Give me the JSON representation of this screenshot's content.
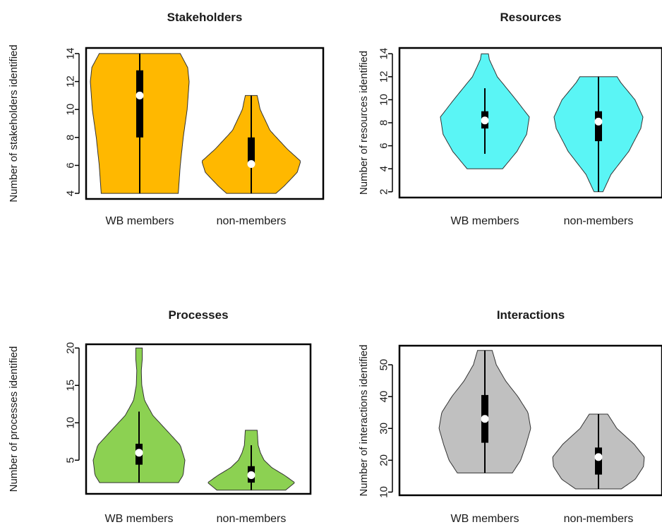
{
  "chart_data": [
    {
      "type": "violin",
      "title": "Stakeholders",
      "ylabel": "Number of stakeholders identified",
      "categories": [
        "WB members",
        "non-members"
      ],
      "yticks": [
        4,
        6,
        8,
        10,
        12,
        14
      ],
      "ylim": [
        3.6,
        14.4
      ],
      "fill": "#FFB800",
      "series": [
        {
          "min": 4,
          "q1": 8,
          "median": 11,
          "q3": 12.8,
          "max": 14,
          "density": [
            [
              4,
              0.78
            ],
            [
              6,
              0.82
            ],
            [
              8,
              0.88
            ],
            [
              10,
              0.96
            ],
            [
              12,
              1.0
            ],
            [
              13,
              0.97
            ],
            [
              14,
              0.82
            ]
          ]
        },
        {
          "min": 4,
          "q1": 6.1,
          "median": 6.1,
          "q3": 8,
          "max": 11,
          "density": [
            [
              4,
              0.5
            ],
            [
              4.5,
              0.66
            ],
            [
              5.5,
              0.93
            ],
            [
              6.3,
              1.0
            ],
            [
              7.2,
              0.72
            ],
            [
              8.5,
              0.38
            ],
            [
              10,
              0.18
            ],
            [
              11,
              0.12
            ]
          ]
        }
      ]
    },
    {
      "type": "violin",
      "title": "Resources",
      "ylabel": "Number of resources identified",
      "categories": [
        "WB members",
        "non-members"
      ],
      "yticks": [
        2,
        4,
        6,
        8,
        10,
        12,
        14
      ],
      "ylim": [
        1.5,
        14.5
      ],
      "fill": "#5AF5F5",
      "series": [
        {
          "min": 5.3,
          "q1": 7.5,
          "median": 8.2,
          "q3": 9,
          "max": 11,
          "density": [
            [
              4,
              0.4
            ],
            [
              5.5,
              0.72
            ],
            [
              7,
              0.94
            ],
            [
              8.5,
              1.0
            ],
            [
              10,
              0.7
            ],
            [
              12,
              0.28
            ],
            [
              13.5,
              0.1
            ],
            [
              14,
              0.08
            ]
          ]
        },
        {
          "min": 2,
          "q1": 6.4,
          "median": 8.1,
          "q3": 9,
          "max": 12,
          "density": [
            [
              2,
              0.1
            ],
            [
              3.5,
              0.28
            ],
            [
              5.5,
              0.68
            ],
            [
              7.5,
              0.95
            ],
            [
              8.5,
              1.0
            ],
            [
              10,
              0.82
            ],
            [
              11.5,
              0.5
            ],
            [
              12,
              0.42
            ]
          ]
        }
      ]
    },
    {
      "type": "violin",
      "title": "Processes",
      "ylabel": "Number of processes identified",
      "categories": [
        "WB members",
        "non-members"
      ],
      "yticks": [
        5,
        10,
        15,
        20
      ],
      "ylim": [
        0.5,
        20.5
      ],
      "fill": "#8CD152",
      "series": [
        {
          "min": 2,
          "q1": 4.4,
          "median": 6,
          "q3": 7.2,
          "max": 11.5,
          "density": [
            [
              2,
              0.86
            ],
            [
              3,
              0.96
            ],
            [
              5,
              1.0
            ],
            [
              7,
              0.9
            ],
            [
              9,
              0.6
            ],
            [
              11,
              0.3
            ],
            [
              13,
              0.12
            ],
            [
              15,
              0.06
            ],
            [
              17,
              0.05
            ],
            [
              18.5,
              0.07
            ],
            [
              20,
              0.07
            ]
          ]
        },
        {
          "min": 1,
          "q1": 2,
          "median": 3,
          "q3": 4.2,
          "max": 7,
          "density": [
            [
              1,
              0.75
            ],
            [
              2,
              0.95
            ],
            [
              3,
              0.72
            ],
            [
              4,
              0.45
            ],
            [
              5,
              0.28
            ],
            [
              6,
              0.2
            ],
            [
              7,
              0.15
            ],
            [
              8,
              0.14
            ],
            [
              9,
              0.13
            ]
          ]
        }
      ]
    },
    {
      "type": "violin",
      "title": "Interactions",
      "ylabel": "Number of interactions identified",
      "categories": [
        "WB members",
        "non-members"
      ],
      "yticks": [
        10,
        20,
        30,
        40,
        50
      ],
      "ylim": [
        9,
        56
      ],
      "fill": "#C0C0C0",
      "series": [
        {
          "min": 16,
          "q1": 25.5,
          "median": 33,
          "q3": 40.5,
          "max": 54.5,
          "density": [
            [
              16,
              0.6
            ],
            [
              20,
              0.78
            ],
            [
              25,
              0.9
            ],
            [
              30,
              1.0
            ],
            [
              35,
              0.94
            ],
            [
              40,
              0.72
            ],
            [
              45,
              0.45
            ],
            [
              50,
              0.25
            ],
            [
              54.5,
              0.16
            ]
          ]
        },
        {
          "min": 11,
          "q1": 15.5,
          "median": 21,
          "q3": 24,
          "max": 34.5,
          "density": [
            [
              11,
              0.5
            ],
            [
              14,
              0.8
            ],
            [
              18,
              0.98
            ],
            [
              21,
              1.0
            ],
            [
              25,
              0.78
            ],
            [
              30,
              0.4
            ],
            [
              34.5,
              0.2
            ]
          ]
        }
      ]
    }
  ]
}
